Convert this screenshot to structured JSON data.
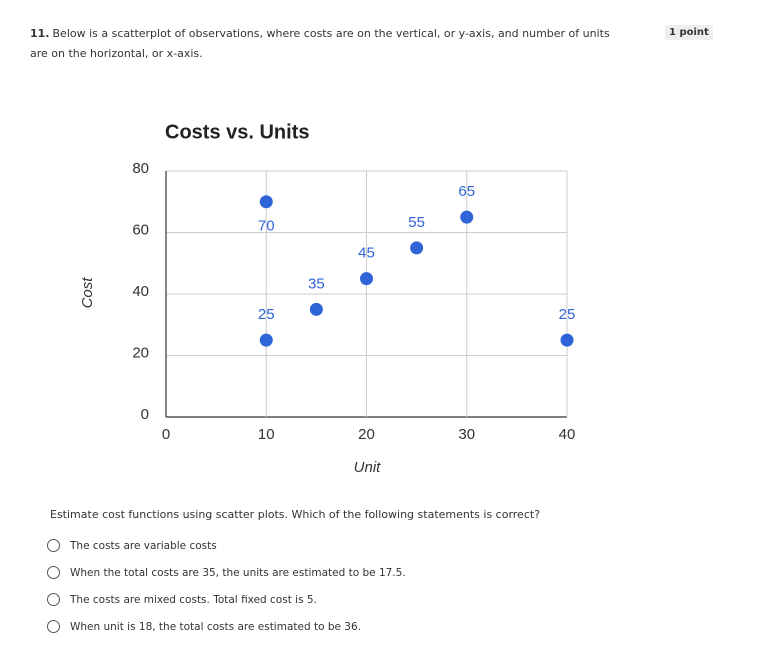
{
  "question": {
    "number": "11.",
    "text": "Below is a scatterplot of observations, where costs are on the vertical, or y-axis, and number of units are on the horizontal, or x-axis.",
    "points": "1 point"
  },
  "chart_data": {
    "type": "scatter",
    "title": "Costs vs. Units",
    "x_label": "Unit",
    "y_label": "Cost",
    "series": [
      {
        "name": "Cost",
        "color": "#2f64d8",
        "x": [
          10,
          10,
          15,
          20,
          25,
          30,
          40
        ],
        "values": [
          70,
          25,
          35,
          45,
          55,
          65,
          25
        ]
      }
    ],
    "xlim": [
      0,
      40
    ],
    "xticks": [
      0,
      10,
      20,
      30,
      40
    ],
    "ylim": [
      0,
      80
    ],
    "yticks": [
      0,
      20,
      40,
      60,
      80
    ],
    "grid": true,
    "data_labels": true
  },
  "prompt": "Estimate cost functions using scatter plots. Which of the following statements is correct?",
  "options": [
    "The costs are variable costs",
    "When the total costs are 35, the units are estimated to be 17.5.",
    "The costs are mixed costs. Total fixed cost is 5.",
    "When unit is 18, the total costs are estimated to be 36."
  ]
}
